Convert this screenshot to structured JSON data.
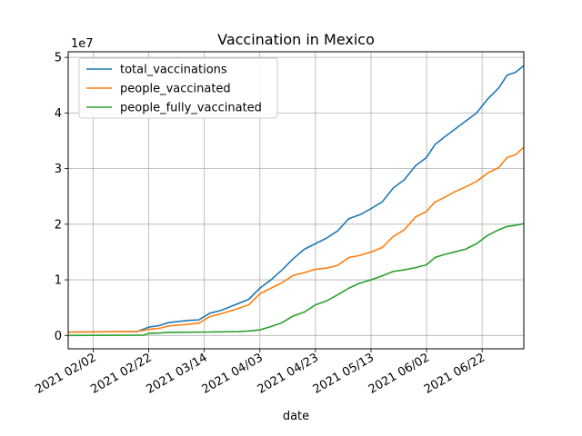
{
  "chart_data": {
    "type": "line",
    "title": "Vaccination in Mexico",
    "xlabel": "date",
    "ylabel": "",
    "y_offset_label": "1e7",
    "x_range": [
      "2021-01-24",
      "2021-07-07"
    ],
    "y_range": [
      -2400000,
      51000000
    ],
    "x_ticks": [
      "2021-02-02",
      "2021-02-22",
      "2021-03-14",
      "2021-04-03",
      "2021-04-23",
      "2021-05-13",
      "2021-06-02",
      "2021-06-22"
    ],
    "x_tick_labels": [
      "2021 02/02",
      "2021 02/22",
      "2021 03/14",
      "2021 04/03",
      "2021 04/23",
      "2021 05/13",
      "2021 06/02",
      "2021 06/22"
    ],
    "y_ticks": [
      0,
      10000000,
      20000000,
      30000000,
      40000000,
      50000000
    ],
    "y_tick_labels": [
      "0",
      "1",
      "2",
      "3",
      "4",
      "5"
    ],
    "grid": true,
    "legend_position": "top-left",
    "series": [
      {
        "name": "total_vaccinations",
        "color": "#1f77b4",
        "points": [
          [
            "2021-01-24",
            600000
          ],
          [
            "2021-02-02",
            640000
          ],
          [
            "2021-02-12",
            680000
          ],
          [
            "2021-02-18",
            720000
          ],
          [
            "2021-02-22",
            1500000
          ],
          [
            "2021-02-26",
            1800000
          ],
          [
            "2021-03-01",
            2300000
          ],
          [
            "2021-03-08",
            2700000
          ],
          [
            "2021-03-12",
            2800000
          ],
          [
            "2021-03-16",
            4000000
          ],
          [
            "2021-03-20",
            4500000
          ],
          [
            "2021-03-24",
            5300000
          ],
          [
            "2021-03-30",
            6500000
          ],
          [
            "2021-04-03",
            8500000
          ],
          [
            "2021-04-07",
            10000000
          ],
          [
            "2021-04-11",
            11800000
          ],
          [
            "2021-04-15",
            13800000
          ],
          [
            "2021-04-19",
            15500000
          ],
          [
            "2021-04-23",
            16500000
          ],
          [
            "2021-04-27",
            17500000
          ],
          [
            "2021-05-01",
            18800000
          ],
          [
            "2021-05-05",
            21000000
          ],
          [
            "2021-05-09",
            21700000
          ],
          [
            "2021-05-13",
            22800000
          ],
          [
            "2021-05-17",
            24000000
          ],
          [
            "2021-05-21",
            26500000
          ],
          [
            "2021-05-25",
            28000000
          ],
          [
            "2021-05-29",
            30500000
          ],
          [
            "2021-06-02",
            32000000
          ],
          [
            "2021-06-05",
            34300000
          ],
          [
            "2021-06-08",
            35500000
          ],
          [
            "2021-06-12",
            37000000
          ],
          [
            "2021-06-16",
            38500000
          ],
          [
            "2021-06-20",
            40000000
          ],
          [
            "2021-06-24",
            42500000
          ],
          [
            "2021-06-28",
            44500000
          ],
          [
            "2021-07-01",
            46800000
          ],
          [
            "2021-07-04",
            47300000
          ],
          [
            "2021-07-07",
            48500000
          ]
        ]
      },
      {
        "name": "people_vaccinated",
        "color": "#ff7f0e",
        "points": [
          [
            "2021-01-24",
            600000
          ],
          [
            "2021-02-02",
            640000
          ],
          [
            "2021-02-12",
            680000
          ],
          [
            "2021-02-18",
            720000
          ],
          [
            "2021-02-22",
            1100000
          ],
          [
            "2021-02-26",
            1300000
          ],
          [
            "2021-03-01",
            1700000
          ],
          [
            "2021-03-08",
            2000000
          ],
          [
            "2021-03-12",
            2200000
          ],
          [
            "2021-03-16",
            3400000
          ],
          [
            "2021-03-20",
            3900000
          ],
          [
            "2021-03-24",
            4500000
          ],
          [
            "2021-03-30",
            5500000
          ],
          [
            "2021-04-03",
            7500000
          ],
          [
            "2021-04-07",
            8500000
          ],
          [
            "2021-04-11",
            9500000
          ],
          [
            "2021-04-15",
            10800000
          ],
          [
            "2021-04-19",
            11300000
          ],
          [
            "2021-04-23",
            11900000
          ],
          [
            "2021-04-27",
            12100000
          ],
          [
            "2021-05-01",
            12600000
          ],
          [
            "2021-05-05",
            14000000
          ],
          [
            "2021-05-09",
            14400000
          ],
          [
            "2021-05-13",
            15000000
          ],
          [
            "2021-05-17",
            15800000
          ],
          [
            "2021-05-21",
            17800000
          ],
          [
            "2021-05-25",
            19000000
          ],
          [
            "2021-05-29",
            21300000
          ],
          [
            "2021-06-02",
            22300000
          ],
          [
            "2021-06-05",
            24000000
          ],
          [
            "2021-06-08",
            24700000
          ],
          [
            "2021-06-12",
            25800000
          ],
          [
            "2021-06-16",
            26700000
          ],
          [
            "2021-06-20",
            27700000
          ],
          [
            "2021-06-24",
            29200000
          ],
          [
            "2021-06-28",
            30200000
          ],
          [
            "2021-07-01",
            32000000
          ],
          [
            "2021-07-04",
            32500000
          ],
          [
            "2021-07-07",
            33800000
          ]
        ]
      },
      {
        "name": "people_fully_vaccinated",
        "color": "#2ca02c",
        "points": [
          [
            "2021-01-24",
            0
          ],
          [
            "2021-02-10",
            40000
          ],
          [
            "2021-02-20",
            50000
          ],
          [
            "2021-02-22",
            350000
          ],
          [
            "2021-02-26",
            450000
          ],
          [
            "2021-03-01",
            550000
          ],
          [
            "2021-03-14",
            600000
          ],
          [
            "2021-03-20",
            650000
          ],
          [
            "2021-03-26",
            700000
          ],
          [
            "2021-03-30",
            800000
          ],
          [
            "2021-04-03",
            1000000
          ],
          [
            "2021-04-07",
            1600000
          ],
          [
            "2021-04-11",
            2300000
          ],
          [
            "2021-04-15",
            3500000
          ],
          [
            "2021-04-19",
            4200000
          ],
          [
            "2021-04-23",
            5500000
          ],
          [
            "2021-04-27",
            6200000
          ],
          [
            "2021-05-01",
            7300000
          ],
          [
            "2021-05-05",
            8500000
          ],
          [
            "2021-05-09",
            9400000
          ],
          [
            "2021-05-13",
            10000000
          ],
          [
            "2021-05-17",
            10700000
          ],
          [
            "2021-05-21",
            11500000
          ],
          [
            "2021-05-25",
            11800000
          ],
          [
            "2021-05-29",
            12200000
          ],
          [
            "2021-06-02",
            12700000
          ],
          [
            "2021-06-05",
            14000000
          ],
          [
            "2021-06-08",
            14500000
          ],
          [
            "2021-06-12",
            15000000
          ],
          [
            "2021-06-16",
            15500000
          ],
          [
            "2021-06-20",
            16500000
          ],
          [
            "2021-06-24",
            18000000
          ],
          [
            "2021-06-28",
            19000000
          ],
          [
            "2021-07-01",
            19600000
          ],
          [
            "2021-07-04",
            19800000
          ],
          [
            "2021-07-07",
            20100000
          ]
        ]
      }
    ]
  }
}
